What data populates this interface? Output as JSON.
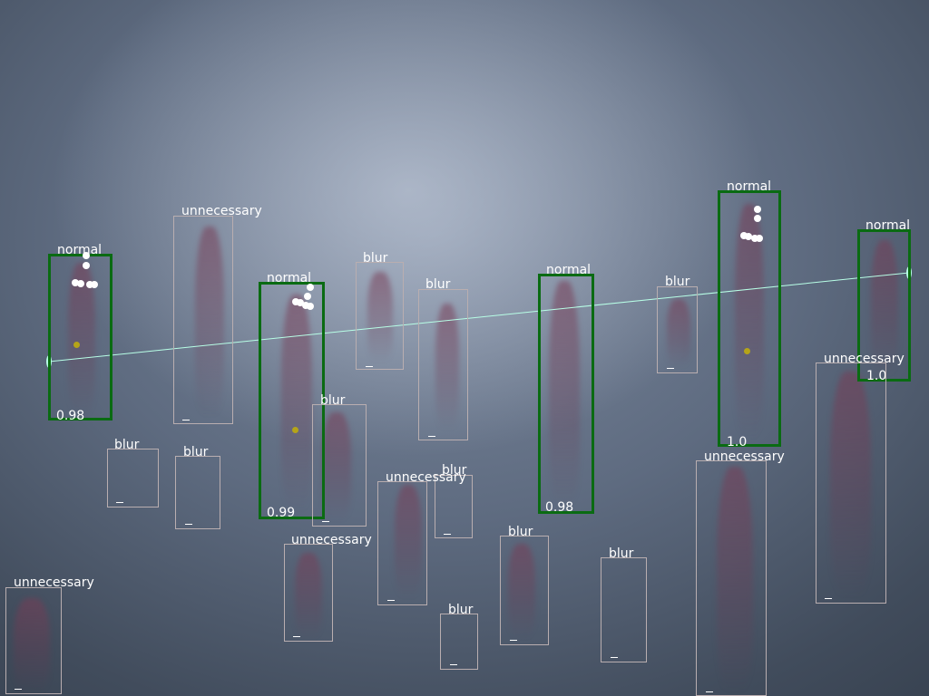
{
  "image": {
    "description_type": "capillaroscopy-detection-overlay"
  },
  "colors": {
    "normal_box": "#0a6b12",
    "other_box": "#b9aeb0",
    "axis_line": "#b8ffe6",
    "label": "#ffffff",
    "keypoint": "#ffffff",
    "center_point": "#b5a418"
  },
  "detections": [
    {
      "label": "normal",
      "score": "0.98"
    },
    {
      "label": "normal",
      "score": "0.99"
    },
    {
      "label": "normal",
      "score": "0.98"
    },
    {
      "label": "normal",
      "score": "1.0"
    },
    {
      "label": "normal",
      "score": "1.0"
    },
    {
      "label": "unnecessary",
      "mark": "_"
    },
    {
      "label": "blur",
      "mark": "_"
    },
    {
      "label": "blur",
      "mark": "_"
    },
    {
      "label": "blur",
      "mark": "_"
    },
    {
      "label": "blur",
      "mark": "_"
    },
    {
      "label": "blur",
      "mark": "_"
    },
    {
      "label": "blur",
      "mark": "_"
    },
    {
      "label": "blur",
      "mark": "_"
    },
    {
      "label": "unnecessary",
      "mark": "_"
    },
    {
      "label": "unnecessary",
      "mark": "_"
    },
    {
      "label": "unnecessary",
      "mark": "_"
    },
    {
      "label": "unnecessary",
      "mark": "_"
    },
    {
      "label": "unnecessary",
      "mark": "_"
    },
    {
      "label": "blur",
      "mark": "_"
    },
    {
      "label": "blur",
      "mark": "_"
    },
    {
      "label": "blur",
      "mark": "_"
    }
  ]
}
